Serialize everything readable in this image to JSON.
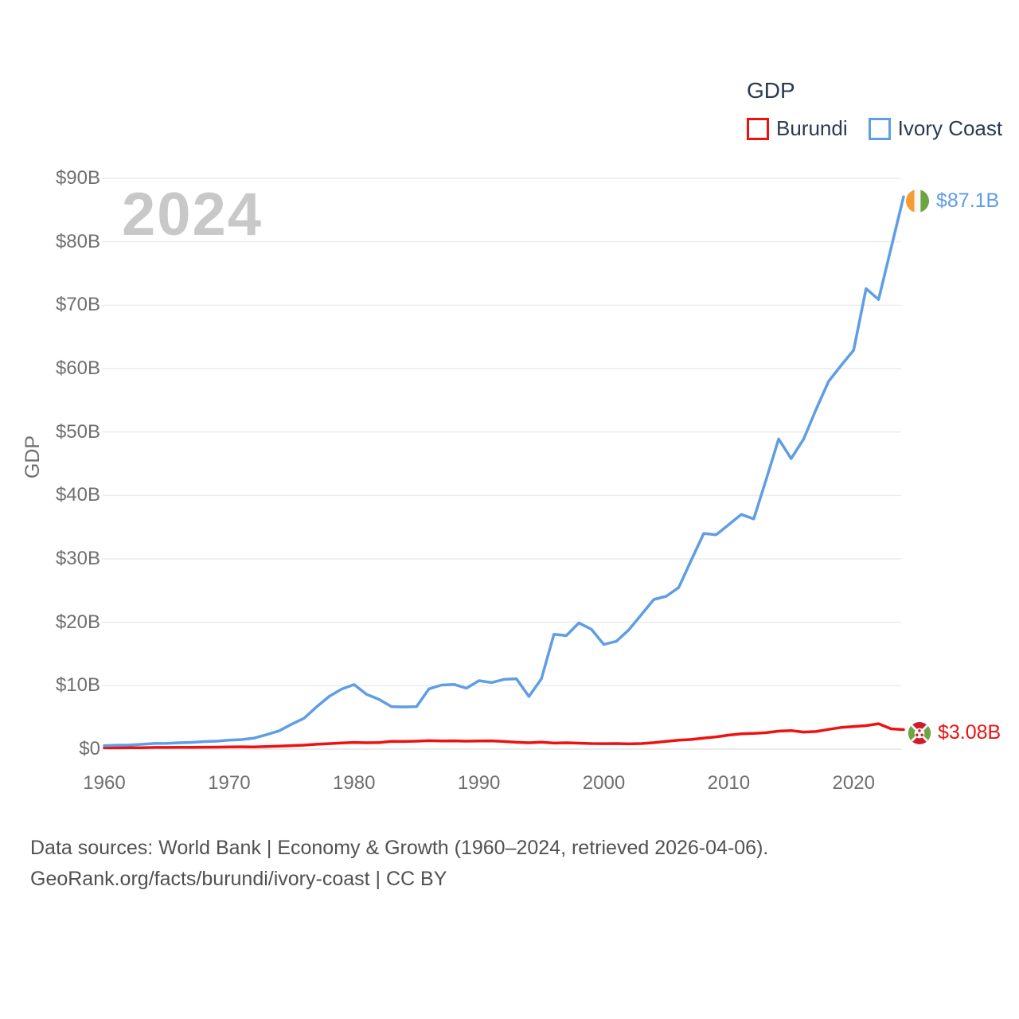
{
  "legend": {
    "title": "GDP"
  },
  "watermark": "2024",
  "flags": {
    "ivory_coast": {
      "orange": "#f59d31",
      "white": "#f7f7f7",
      "green": "#6da544"
    },
    "burundi": {
      "red": "#ce1c2e",
      "green": "#6da544",
      "white": "#f7f7f7"
    }
  },
  "chart_data": {
    "type": "line",
    "title": "GDP",
    "xlabel": "",
    "ylabel": "GDP",
    "xlim": [
      1960,
      2024
    ],
    "ylim": [
      0,
      90
    ],
    "grid": "horizontal",
    "legend_position": "top-right",
    "x": [
      1960,
      1961,
      1962,
      1963,
      1964,
      1965,
      1966,
      1967,
      1968,
      1969,
      1970,
      1971,
      1972,
      1973,
      1974,
      1975,
      1976,
      1977,
      1978,
      1979,
      1980,
      1981,
      1982,
      1983,
      1984,
      1985,
      1986,
      1987,
      1988,
      1989,
      1990,
      1991,
      1992,
      1993,
      1994,
      1995,
      1996,
      1997,
      1998,
      1999,
      2000,
      2001,
      2002,
      2003,
      2004,
      2005,
      2006,
      2007,
      2008,
      2009,
      2010,
      2011,
      2012,
      2013,
      2014,
      2015,
      2016,
      2017,
      2018,
      2019,
      2020,
      2021,
      2022,
      2023,
      2024
    ],
    "series": [
      {
        "name": "Burundi",
        "color": "#ee1111",
        "values": [
          0.2,
          0.2,
          0.21,
          0.23,
          0.26,
          0.26,
          0.27,
          0.29,
          0.3,
          0.32,
          0.34,
          0.36,
          0.35,
          0.4,
          0.46,
          0.55,
          0.63,
          0.77,
          0.87,
          0.97,
          1.05,
          1.0,
          1.04,
          1.23,
          1.2,
          1.26,
          1.33,
          1.28,
          1.3,
          1.25,
          1.28,
          1.31,
          1.21,
          1.08,
          1.0,
          1.1,
          0.96,
          1.01,
          0.94,
          0.88,
          0.87,
          0.88,
          0.83,
          0.88,
          1.02,
          1.23,
          1.42,
          1.52,
          1.75,
          1.93,
          2.21,
          2.41,
          2.47,
          2.58,
          2.84,
          2.92,
          2.68,
          2.77,
          3.11,
          3.42,
          3.56,
          3.7,
          4.0,
          3.2,
          3.08
        ]
      },
      {
        "name": "Ivory Coast",
        "color": "#5f9de4",
        "values": [
          0.55,
          0.62,
          0.64,
          0.75,
          0.89,
          0.92,
          1.0,
          1.07,
          1.19,
          1.26,
          1.4,
          1.51,
          1.74,
          2.28,
          2.87,
          3.93,
          4.87,
          6.66,
          8.3,
          9.47,
          10.18,
          8.65,
          7.85,
          6.7,
          6.65,
          6.7,
          9.5,
          10.1,
          10.2,
          9.6,
          10.8,
          10.5,
          11.0,
          11.1,
          8.3,
          11.1,
          18.1,
          17.9,
          19.9,
          18.9,
          16.5,
          17.0,
          18.8,
          21.2,
          23.6,
          24.1,
          25.5,
          29.8,
          34.0,
          33.8,
          35.4,
          37.0,
          36.3,
          42.5,
          48.9,
          45.8,
          48.9,
          53.6,
          58.0,
          60.5,
          62.9,
          72.6,
          70.9,
          79.0,
          87.1
        ]
      }
    ],
    "y_ticks": [
      {
        "label": "$0",
        "value": 0
      },
      {
        "label": "$10B",
        "value": 10
      },
      {
        "label": "$20B",
        "value": 20
      },
      {
        "label": "$30B",
        "value": 30
      },
      {
        "label": "$40B",
        "value": 40
      },
      {
        "label": "$50B",
        "value": 50
      },
      {
        "label": "$60B",
        "value": 60
      },
      {
        "label": "$70B",
        "value": 70
      },
      {
        "label": "$80B",
        "value": 80
      },
      {
        "label": "$90B",
        "value": 90
      }
    ],
    "x_ticks": [
      {
        "label": "1960",
        "value": 1960
      },
      {
        "label": "1970",
        "value": 1970
      },
      {
        "label": "1980",
        "value": 1980
      },
      {
        "label": "1990",
        "value": 1990
      },
      {
        "label": "2000",
        "value": 2000
      },
      {
        "label": "2010",
        "value": 2010
      },
      {
        "label": "2020",
        "value": 2020
      }
    ],
    "end_labels": [
      {
        "series": "Ivory Coast",
        "label": "$87.1B"
      },
      {
        "series": "Burundi",
        "label": "$3.08B"
      }
    ]
  },
  "footer": {
    "line1": "Data sources: World Bank | Economy & Growth (1960–2024, retrieved 2026-04-06).",
    "line2": "GeoRank.org/facts/burundi/ivory-coast | CC BY"
  }
}
